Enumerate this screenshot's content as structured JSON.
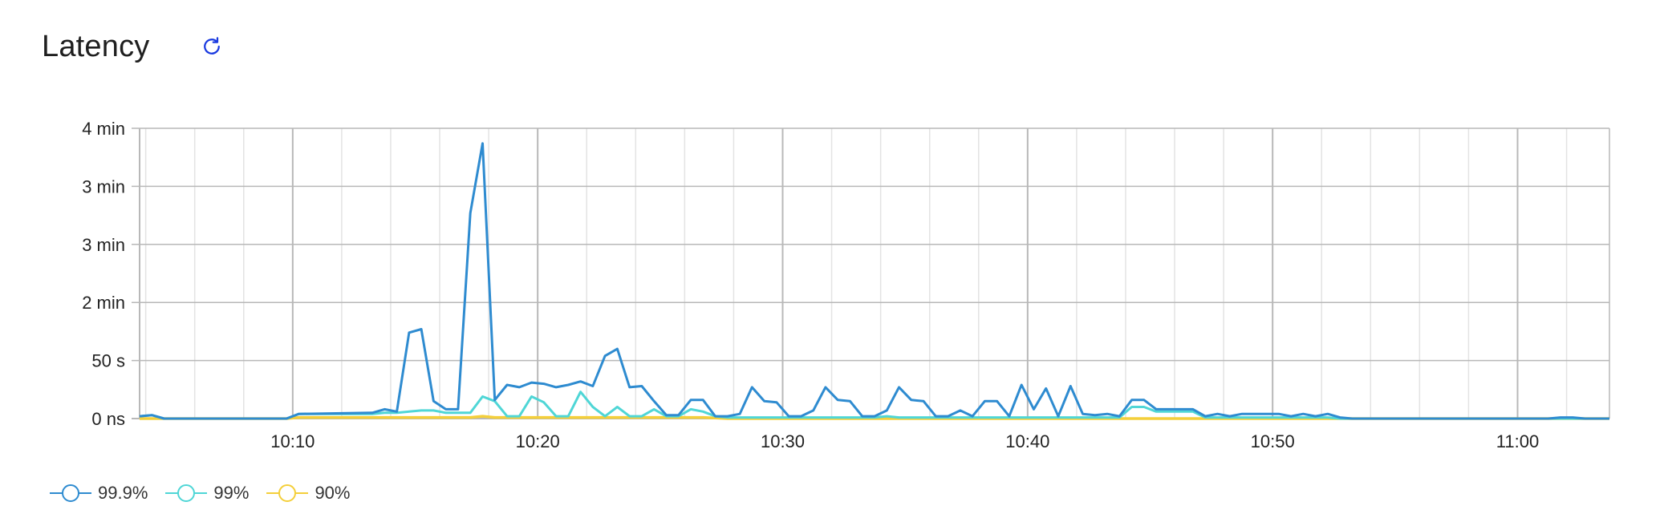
{
  "header": {
    "title": "Latency",
    "refresh_icon": "refresh-icon"
  },
  "colors": {
    "p999": "#2e8bd0",
    "p99": "#4fd6d6",
    "p90": "#f4cf3a",
    "grid_major": "#b8b8b8",
    "grid_minor": "#e3e3e3",
    "accent": "#1a3ae0"
  },
  "chart_data": {
    "type": "line",
    "title": "Latency",
    "y_ticks": [
      "0 ns",
      "50 s",
      "2 min",
      "3 min",
      "3 min",
      "4 min"
    ],
    "x_ticks": [
      "10:10",
      "10:20",
      "10:30",
      "10:40",
      "10:50",
      "11:00"
    ],
    "x_range": [
      "10:03:45",
      "11:03:45"
    ],
    "y_range_seconds": [
      0,
      250
    ],
    "grid": true,
    "legend_position": "bottom-left",
    "series": [
      {
        "name": "99.9%",
        "color": "#2e8bd0",
        "values": [
          [
            0,
            2
          ],
          [
            0.5,
            3
          ],
          [
            1,
            0
          ],
          [
            6,
            0
          ],
          [
            6.5,
            4
          ],
          [
            9.5,
            5
          ],
          [
            10,
            8
          ],
          [
            10.5,
            6
          ],
          [
            11,
            74
          ],
          [
            11.5,
            77
          ],
          [
            12,
            15
          ],
          [
            12.5,
            8
          ],
          [
            13,
            8
          ],
          [
            13.5,
            177
          ],
          [
            14,
            237
          ],
          [
            14.5,
            16
          ],
          [
            15,
            29
          ],
          [
            15.5,
            27
          ],
          [
            16,
            31
          ],
          [
            16.5,
            30
          ],
          [
            17,
            27
          ],
          [
            17.5,
            29
          ],
          [
            18,
            32
          ],
          [
            18.5,
            28
          ],
          [
            19,
            54
          ],
          [
            19.5,
            60
          ],
          [
            20,
            27
          ],
          [
            20.5,
            28
          ],
          [
            21,
            15
          ],
          [
            21.5,
            3
          ],
          [
            22,
            3
          ],
          [
            22.5,
            16
          ],
          [
            23,
            16
          ],
          [
            23.5,
            2
          ],
          [
            24,
            2
          ],
          [
            24.5,
            4
          ],
          [
            25,
            27
          ],
          [
            25.5,
            15
          ],
          [
            26,
            14
          ],
          [
            26.5,
            2
          ],
          [
            27,
            2
          ],
          [
            27.5,
            7
          ],
          [
            28,
            27
          ],
          [
            28.5,
            16
          ],
          [
            29,
            15
          ],
          [
            29.5,
            2
          ],
          [
            30,
            2
          ],
          [
            30.5,
            7
          ],
          [
            31,
            27
          ],
          [
            31.5,
            16
          ],
          [
            32,
            15
          ],
          [
            32.5,
            2
          ],
          [
            33,
            2
          ],
          [
            33.5,
            7
          ],
          [
            34,
            2
          ],
          [
            34.5,
            15
          ],
          [
            35,
            15
          ],
          [
            35.5,
            2
          ],
          [
            36,
            29
          ],
          [
            36.5,
            8
          ],
          [
            37,
            26
          ],
          [
            37.5,
            2
          ],
          [
            38,
            28
          ],
          [
            38.5,
            4
          ],
          [
            39,
            3
          ],
          [
            39.5,
            4
          ],
          [
            40,
            2
          ],
          [
            40.5,
            16
          ],
          [
            41,
            16
          ],
          [
            41.5,
            8
          ],
          [
            42,
            8
          ],
          [
            42.5,
            8
          ],
          [
            43,
            8
          ],
          [
            43.5,
            2
          ],
          [
            44,
            4
          ],
          [
            44.5,
            2
          ],
          [
            45,
            4
          ],
          [
            45.5,
            4
          ],
          [
            46,
            4
          ],
          [
            46.5,
            4
          ],
          [
            47,
            2
          ],
          [
            47.5,
            4
          ],
          [
            48,
            2
          ],
          [
            48.5,
            4
          ],
          [
            49,
            1
          ],
          [
            49.5,
            0
          ],
          [
            57.5,
            0
          ],
          [
            58,
            1
          ],
          [
            58.5,
            1
          ],
          [
            59,
            0
          ],
          [
            60,
            0
          ]
        ]
      },
      {
        "name": "99%",
        "color": "#4fd6d6",
        "values": [
          [
            0,
            2
          ],
          [
            0.5,
            3
          ],
          [
            1,
            0
          ],
          [
            6,
            0
          ],
          [
            6.5,
            4
          ],
          [
            9.5,
            4
          ],
          [
            10,
            5
          ],
          [
            10.5,
            5
          ],
          [
            11,
            6
          ],
          [
            11.5,
            7
          ],
          [
            12,
            7
          ],
          [
            12.5,
            5
          ],
          [
            13,
            5
          ],
          [
            13.5,
            5
          ],
          [
            14,
            19
          ],
          [
            14.5,
            15
          ],
          [
            15,
            2
          ],
          [
            15.5,
            2
          ],
          [
            16,
            19
          ],
          [
            16.5,
            14
          ],
          [
            17,
            2
          ],
          [
            17.5,
            2
          ],
          [
            18,
            23
          ],
          [
            18.5,
            10
          ],
          [
            19,
            2
          ],
          [
            19.5,
            10
          ],
          [
            20,
            2
          ],
          [
            20.5,
            2
          ],
          [
            21,
            8
          ],
          [
            21.5,
            2
          ],
          [
            22,
            2
          ],
          [
            22.5,
            8
          ],
          [
            23,
            6
          ],
          [
            23.5,
            2
          ],
          [
            24,
            1
          ],
          [
            26,
            1
          ],
          [
            26.5,
            1
          ],
          [
            27,
            1
          ],
          [
            30,
            1
          ],
          [
            30.5,
            2
          ],
          [
            31,
            1
          ],
          [
            34,
            1
          ],
          [
            34.5,
            1
          ],
          [
            35,
            1
          ],
          [
            40,
            1
          ],
          [
            40.5,
            10
          ],
          [
            41,
            10
          ],
          [
            41.5,
            6
          ],
          [
            42,
            6
          ],
          [
            42.5,
            6
          ],
          [
            43,
            6
          ],
          [
            43.5,
            1
          ],
          [
            44,
            1
          ],
          [
            48,
            1
          ],
          [
            48.5,
            1
          ],
          [
            49,
            0
          ],
          [
            60,
            0
          ]
        ]
      },
      {
        "name": "90%",
        "color": "#f4cf3a",
        "values": [
          [
            0,
            0
          ],
          [
            6,
            0
          ],
          [
            6.5,
            1
          ],
          [
            9.5,
            1
          ],
          [
            10,
            1
          ],
          [
            10.5,
            1
          ],
          [
            11,
            1
          ],
          [
            11.5,
            1
          ],
          [
            12,
            1
          ],
          [
            12.5,
            1
          ],
          [
            13,
            1
          ],
          [
            13.5,
            1
          ],
          [
            14,
            2
          ],
          [
            14.5,
            1
          ],
          [
            15,
            1
          ],
          [
            16,
            1
          ],
          [
            17,
            1
          ],
          [
            18,
            1
          ],
          [
            19,
            1
          ],
          [
            20,
            1
          ],
          [
            21,
            1
          ],
          [
            22,
            1
          ],
          [
            23,
            1
          ],
          [
            24,
            0
          ],
          [
            60,
            0
          ]
        ]
      }
    ]
  },
  "legend": [
    {
      "label": "99.9%",
      "color": "#2e8bd0"
    },
    {
      "label": "99%",
      "color": "#4fd6d6"
    },
    {
      "label": "90%",
      "color": "#f4cf3a"
    }
  ]
}
